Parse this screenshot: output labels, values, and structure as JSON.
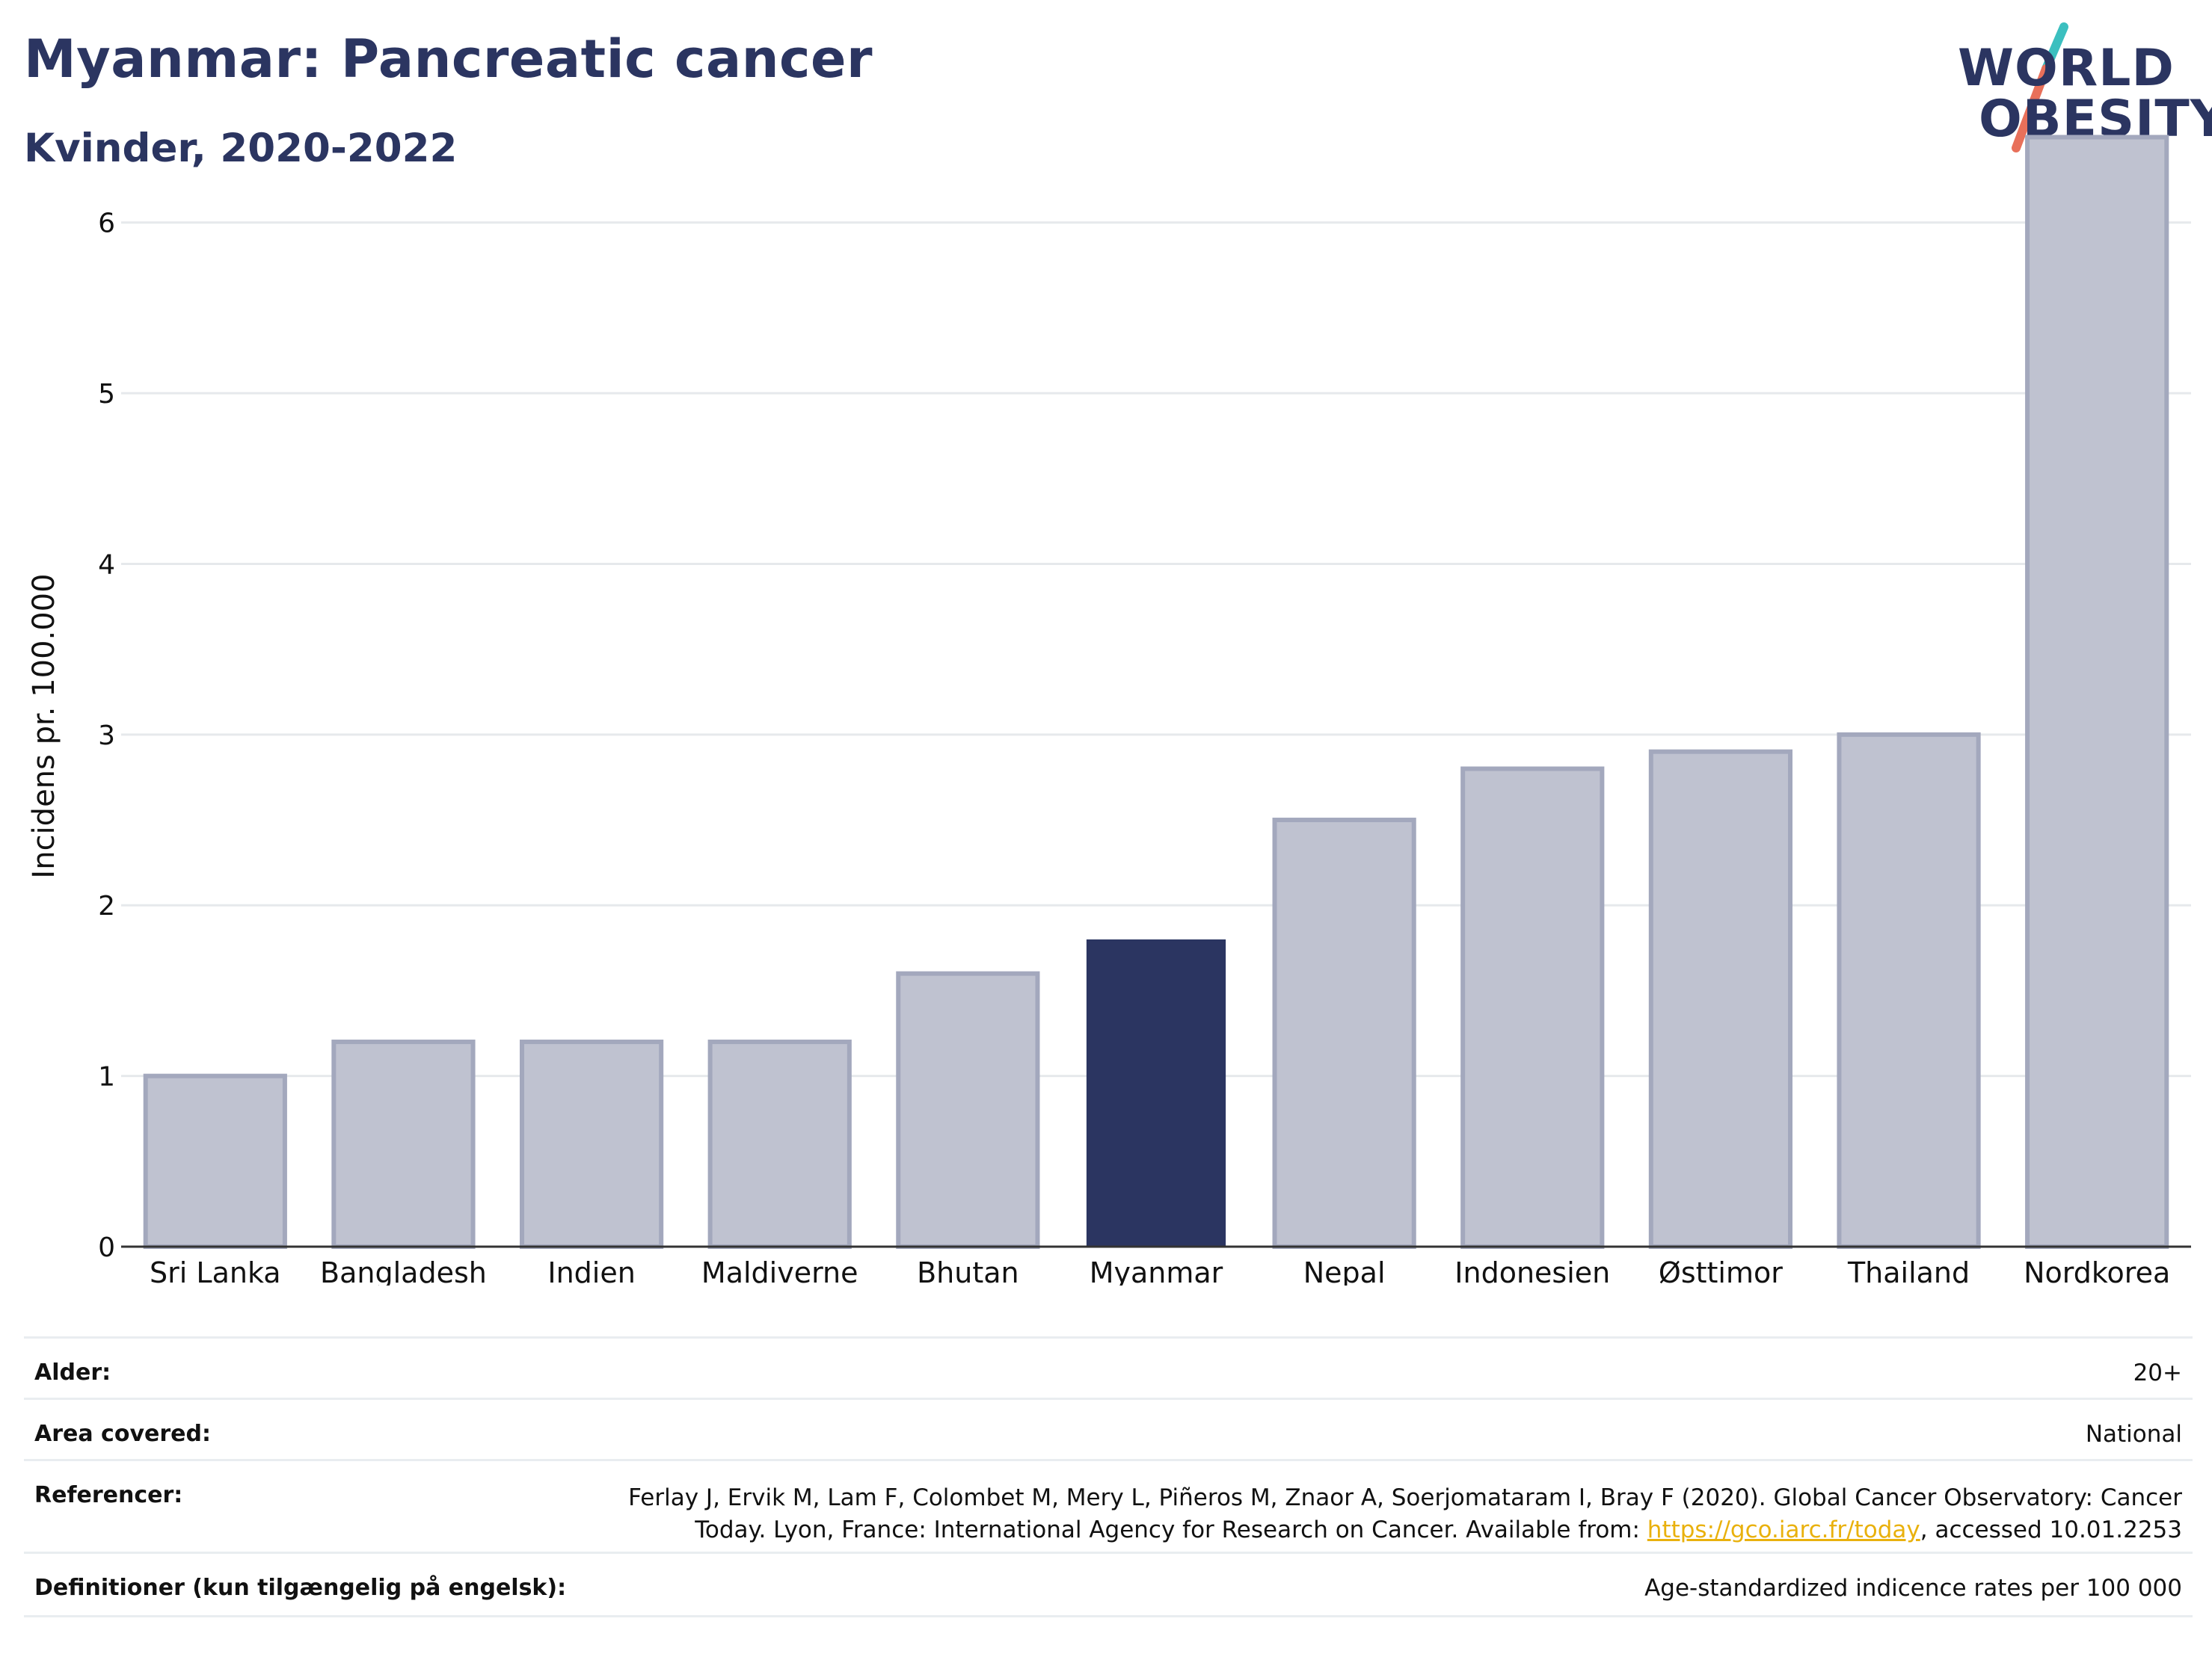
{
  "header": {
    "title": "Myanmar: Pancreatic cancer",
    "subtitle": "Kvinder, 2020-2022"
  },
  "logo": {
    "line1": "WORLD",
    "line2": "OBESITY",
    "accent_teal": "#3bbfbf",
    "accent_red": "#e8705a"
  },
  "chart_data": {
    "type": "bar",
    "ylabel": "Incidens pr. 100.000",
    "ylim": [
      0,
      6.8
    ],
    "yticks": [
      0,
      1,
      2,
      3,
      4,
      5,
      6
    ],
    "categories": [
      "Sri Lanka",
      "Bangladesh",
      "Indien",
      "Maldiverne",
      "Bhutan",
      "Myanmar",
      "Nepal",
      "Indonesien",
      "Østtimor",
      "Thailand",
      "Nordkorea"
    ],
    "values": [
      1.0,
      1.2,
      1.2,
      1.2,
      1.6,
      1.8,
      2.5,
      2.8,
      2.9,
      3.0,
      6.5
    ],
    "highlight": "Myanmar",
    "bar_color": "#bfc2d0",
    "bar_border": "#a3a8bd",
    "highlight_color": "#2b3561",
    "grid": true
  },
  "meta": {
    "rows": [
      {
        "label": "Alder:",
        "value": "20+"
      },
      {
        "label": "Area covered:",
        "value": "National"
      },
      {
        "label": "Referencer:",
        "value_line1": "Ferlay J, Ervik M, Lam F, Colombet M, Mery L, Piñeros M, Znaor A, Soerjomataram I, Bray F (2020). Global Cancer Observatory: Cancer",
        "value_line2_pre": "Today. Lyon, France: International Agency for Research on Cancer. Available from: ",
        "value_link": "https://gco.iarc.fr/today",
        "value_line2_post": ", accessed 10.01.2253"
      },
      {
        "label": "Definitioner (kun tilgængelig på engelsk):",
        "value": "Age-standardized indicence rates per 100 000"
      }
    ]
  }
}
